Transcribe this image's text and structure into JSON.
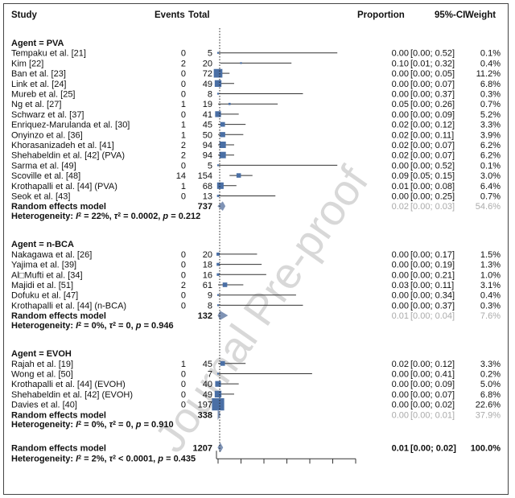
{
  "watermark": "Journal Pre-proof",
  "header": {
    "study": "Study",
    "events": "Events",
    "total": "Total",
    "proportion": "Proportion",
    "ci": "95%-CI",
    "weight": "Weight"
  },
  "colors": {
    "box": "#4a6fa5",
    "diamond": "#7f93b5",
    "line": "#333333",
    "dotted": "#222222"
  },
  "chart_data": {
    "type": "forest",
    "x_scale": {
      "min": 0,
      "max": 0.6,
      "null_line": 0
    },
    "groups": [
      {
        "name": "Agent = PVA",
        "studies": [
          {
            "study": "Tempaku et al. [21]",
            "events": "0",
            "total": "5",
            "prop": 0.0,
            "lo": 0.0,
            "hi": 0.52,
            "ci": "[0.00; 0.52]",
            "prop_text": "0.00",
            "weight": "0.1%",
            "w": 0.1
          },
          {
            "study": "Kim [22]",
            "events": "2",
            "total": "20",
            "prop": 0.1,
            "lo": 0.01,
            "hi": 0.32,
            "ci": "[0.01; 0.32]",
            "prop_text": "0.10",
            "weight": "0.4%",
            "w": 0.4
          },
          {
            "study": "Ban et al. [23]",
            "events": "0",
            "total": "72",
            "prop": 0.0,
            "lo": 0.0,
            "hi": 0.05,
            "ci": "[0.00; 0.05]",
            "prop_text": "0.00",
            "weight": "11.2%",
            "w": 11.2
          },
          {
            "study": "Link et al. [24]",
            "events": "0",
            "total": "49",
            "prop": 0.0,
            "lo": 0.0,
            "hi": 0.07,
            "ci": "[0.00; 0.07]",
            "prop_text": "0.00",
            "weight": "6.8%",
            "w": 6.8
          },
          {
            "study": "Mureb et al. [25]",
            "events": "0",
            "total": "8",
            "prop": 0.0,
            "lo": 0.0,
            "hi": 0.37,
            "ci": "[0.00; 0.37]",
            "prop_text": "0.00",
            "weight": "0.3%",
            "w": 0.3
          },
          {
            "study": "Ng et al. [27]",
            "events": "1",
            "total": "19",
            "prop": 0.05,
            "lo": 0.0,
            "hi": 0.26,
            "ci": "[0.00; 0.26]",
            "prop_text": "0.05",
            "weight": "0.7%",
            "w": 0.7
          },
          {
            "study": "Schwarz et al. [37]",
            "events": "0",
            "total": "41",
            "prop": 0.0,
            "lo": 0.0,
            "hi": 0.09,
            "ci": "[0.00; 0.09]",
            "prop_text": "0.00",
            "weight": "5.2%",
            "w": 5.2
          },
          {
            "study": "Enriquez-Marulanda et al. [30]",
            "events": "1",
            "total": "45",
            "prop": 0.02,
            "lo": 0.0,
            "hi": 0.12,
            "ci": "[0.00; 0.12]",
            "prop_text": "0.02",
            "weight": "3.3%",
            "w": 3.3
          },
          {
            "study": "Onyinzo et al. [36]",
            "events": "1",
            "total": "50",
            "prop": 0.02,
            "lo": 0.0,
            "hi": 0.11,
            "ci": "[0.00; 0.11]",
            "prop_text": "0.02",
            "weight": "3.9%",
            "w": 3.9
          },
          {
            "study": "Khorasanizadeh et al. [41]",
            "events": "2",
            "total": "94",
            "prop": 0.02,
            "lo": 0.0,
            "hi": 0.07,
            "ci": "[0.00; 0.07]",
            "prop_text": "0.02",
            "weight": "6.2%",
            "w": 6.2
          },
          {
            "study": "Shehabeldin et al. [42] (PVA)",
            "events": "2",
            "total": "94",
            "prop": 0.02,
            "lo": 0.0,
            "hi": 0.07,
            "ci": "[0.00; 0.07]",
            "prop_text": "0.02",
            "weight": "6.2%",
            "w": 6.2
          },
          {
            "study": "Sarma et al. [49]",
            "events": "0",
            "total": "5",
            "prop": 0.0,
            "lo": 0.0,
            "hi": 0.52,
            "ci": "[0.00; 0.52]",
            "prop_text": "0.00",
            "weight": "0.1%",
            "w": 0.1
          },
          {
            "study": "Scoville et al. [48]",
            "events": "14",
            "total": "154",
            "prop": 0.09,
            "lo": 0.05,
            "hi": 0.15,
            "ci": "[0.05; 0.15]",
            "prop_text": "0.09",
            "weight": "3.0%",
            "w": 3.0
          },
          {
            "study": "Krothapalli et al. [44] (PVA)",
            "events": "1",
            "total": "68",
            "prop": 0.01,
            "lo": 0.0,
            "hi": 0.08,
            "ci": "[0.00; 0.08]",
            "prop_text": "0.01",
            "weight": "6.4%",
            "w": 6.4
          },
          {
            "study": "Seok et al. [43]",
            "events": "0",
            "total": "13",
            "prop": 0.0,
            "lo": 0.0,
            "hi": 0.25,
            "ci": "[0.00; 0.25]",
            "prop_text": "0.00",
            "weight": "0.7%",
            "w": 0.7
          }
        ],
        "model": {
          "label": "Random effects model",
          "total": "737",
          "prop": 0.02,
          "lo": 0.0,
          "hi": 0.03,
          "prop_text": "0.02",
          "ci": "[0.00; 0.03]",
          "weight": "54.6%"
        },
        "het": {
          "prefix": "Heterogeneity: ",
          "i2": "I",
          "i2_rest": " = 22%, ",
          "tau": "τ",
          "tau_rest": " = 0.0002, ",
          "p": "p",
          "p_rest": " = 0.212"
        }
      },
      {
        "name": "Agent = n-BCA",
        "studies": [
          {
            "study": "Nakagawa et al. [26]",
            "events": "0",
            "total": "20",
            "prop": 0.0,
            "lo": 0.0,
            "hi": 0.17,
            "ci": "[0.00; 0.17]",
            "prop_text": "0.00",
            "weight": "1.5%",
            "w": 1.5
          },
          {
            "study": "Yajima et al. [39]",
            "events": "0",
            "total": "18",
            "prop": 0.0,
            "lo": 0.0,
            "hi": 0.19,
            "ci": "[0.00; 0.19]",
            "prop_text": "0.00",
            "weight": "1.3%",
            "w": 1.3
          },
          {
            "study": "Al□Mufti et al. [34]",
            "events": "0",
            "total": "16",
            "prop": 0.0,
            "lo": 0.0,
            "hi": 0.21,
            "ci": "[0.00; 0.21]",
            "prop_text": "0.00",
            "weight": "1.0%",
            "w": 1.0
          },
          {
            "study": "Majidi et al. [51]",
            "events": "2",
            "total": "61",
            "prop": 0.03,
            "lo": 0.0,
            "hi": 0.11,
            "ci": "[0.00; 0.11]",
            "prop_text": "0.03",
            "weight": "3.1%",
            "w": 3.1
          },
          {
            "study": "Dofuku et al. [47]",
            "events": "0",
            "total": "9",
            "prop": 0.0,
            "lo": 0.0,
            "hi": 0.34,
            "ci": "[0.00; 0.34]",
            "prop_text": "0.00",
            "weight": "0.4%",
            "w": 0.4
          },
          {
            "study": "Krothapalli et al. [44] (n-BCA)",
            "events": "0",
            "total": "8",
            "prop": 0.0,
            "lo": 0.0,
            "hi": 0.37,
            "ci": "[0.00; 0.37]",
            "prop_text": "0.00",
            "weight": "0.3%",
            "w": 0.3
          }
        ],
        "model": {
          "label": "Random effects model",
          "total": "132",
          "prop": 0.01,
          "lo": 0.0,
          "hi": 0.04,
          "prop_text": "0.01",
          "ci": "[0.00; 0.04]",
          "weight": "7.6%"
        },
        "het": {
          "prefix": "Heterogeneity: ",
          "i2": "I",
          "i2_rest": " = 0%, ",
          "tau": "τ",
          "tau_rest": " = 0, ",
          "p": "p",
          "p_rest": " = 0.946"
        }
      },
      {
        "name": "Agent = EVOH",
        "studies": [
          {
            "study": "Rajah et al. [19]",
            "events": "1",
            "total": "45",
            "prop": 0.02,
            "lo": 0.0,
            "hi": 0.12,
            "ci": "[0.00; 0.12]",
            "prop_text": "0.02",
            "weight": "3.3%",
            "w": 3.3
          },
          {
            "study": "Wong et al. [50]",
            "events": "0",
            "total": "7",
            "prop": 0.0,
            "lo": 0.0,
            "hi": 0.41,
            "ci": "[0.00; 0.41]",
            "prop_text": "0.00",
            "weight": "0.2%",
            "w": 0.2
          },
          {
            "study": "Krothapalli et al. [44] (EVOH)",
            "events": "0",
            "total": "40",
            "prop": 0.0,
            "lo": 0.0,
            "hi": 0.09,
            "ci": "[0.00; 0.09]",
            "prop_text": "0.00",
            "weight": "5.0%",
            "w": 5.0
          },
          {
            "study": "Shehabeldin et al. [42] (EVOH)",
            "events": "0",
            "total": "49",
            "prop": 0.0,
            "lo": 0.0,
            "hi": 0.07,
            "ci": "[0.00; 0.07]",
            "prop_text": "0.00",
            "weight": "6.8%",
            "w": 6.8
          },
          {
            "study": "Davies et al. [40]",
            "events": "0",
            "total": "197",
            "prop": 0.0,
            "lo": 0.0,
            "hi": 0.02,
            "ci": "[0.00; 0.02]",
            "prop_text": "0.00",
            "weight": "22.6%",
            "w": 22.6
          }
        ],
        "model": {
          "label": "Random effects model",
          "total": "338",
          "prop": 0.0,
          "lo": 0.0,
          "hi": 0.01,
          "prop_text": "0.00",
          "ci": "[0.00; 0.01]",
          "weight": "37.9%"
        },
        "het": {
          "prefix": "Heterogeneity: ",
          "i2": "I",
          "i2_rest": " = 0%, ",
          "tau": "τ",
          "tau_rest": " = 0, ",
          "p": "p",
          "p_rest": " = 0.910"
        }
      }
    ],
    "overall": {
      "label": "Random effects model",
      "total": "1207",
      "prop": 0.01,
      "lo": 0.0,
      "hi": 0.02,
      "prop_text": "0.01",
      "ci": "[0.00; 0.02]",
      "weight": "100.0%",
      "het": {
        "prefix": "Heterogeneity: ",
        "i2": "I",
        "i2_rest": " = 2%, ",
        "tau": "τ",
        "tau_rest": " < 0.0001, ",
        "p": "p",
        "p_rest": " = 0.435"
      }
    }
  }
}
